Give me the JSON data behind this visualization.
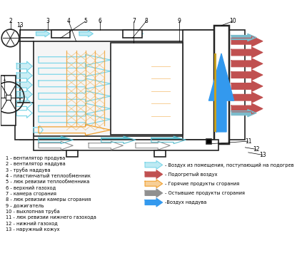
{
  "bg_color": "#ffffff",
  "outline_color": "#222222",
  "light_blue": "#7dd6e8",
  "red_color": "#c05050",
  "orange_color": "#f0a030",
  "gray_color": "#909090",
  "blue_color": "#3399ee",
  "legend_items": [
    {
      "label": "- Воздух из помещения, поступающий на подогрев",
      "color": "#7dd6e8",
      "filled": false
    },
    {
      "label": "- Подогретый воздух",
      "color": "#c05050",
      "filled": true
    },
    {
      "label": "- Горячие продукты сгорания",
      "color": "#f0a030",
      "filled": false
    },
    {
      "label": "- Остывшие продукты сгорания",
      "color": "#909090",
      "filled": true
    },
    {
      "label": "-Воздух наддува",
      "color": "#3399ee",
      "filled": true
    }
  ],
  "labels": [
    "1 - вентилятор продува",
    "2 - вентилятор наддува",
    "3 - труба наддува",
    "4 - пластинчатый теплообменник",
    "5 - люк ревизии теплообменника",
    "6 - верхний газоход",
    "7 - камера сгорания",
    "8 - люк ревизии камеры сгорания",
    "9 - дожигатель",
    "10 - выхлопная труба",
    "11 - люк ревизии нижнего газохода",
    "12 - нижний газоход",
    "13 - наружный кожух"
  ]
}
